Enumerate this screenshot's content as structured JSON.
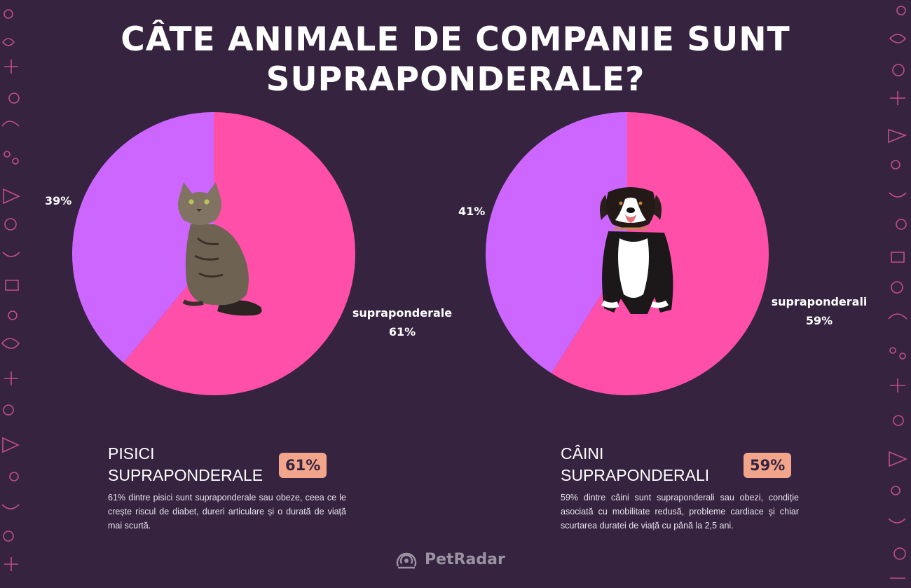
{
  "title_line1": "CÂTE ANIMALE DE COMPANIE SUNT",
  "title_line2": "SUPRAPONDERALE?",
  "colors": {
    "background": "#35233f",
    "overweight": "#ff4fa8",
    "other": "#cc66ff",
    "badge": "#f3a58b",
    "pattern": "#e05c9c"
  },
  "chart_data": [
    {
      "type": "pie",
      "values": [
        61,
        39
      ],
      "slice_colors": [
        "#ff4fa8",
        "#cc66ff"
      ],
      "labels": {
        "overweight_name": "supraponderale",
        "overweight_pct": "61%",
        "other_pct": "39%"
      },
      "center_image": "cat-image"
    },
    {
      "type": "pie",
      "values": [
        59,
        41
      ],
      "slice_colors": [
        "#ff4fa8",
        "#cc66ff"
      ],
      "labels": {
        "overweight_name": "supraponderali",
        "overweight_pct": "59%",
        "other_pct": "41%"
      },
      "center_image": "dog-image"
    }
  ],
  "cats_info": {
    "heading_line1": "PISICI",
    "heading_line2": "SUPRAPONDERALE",
    "badge": "61%",
    "text": "61% dintre pisici sunt supraponderale sau obeze, ceea ce le crește riscul de diabet, dureri articulare și o durată de viață mai scurtă."
  },
  "dogs_info": {
    "heading_line1": "CÂINI",
    "heading_line2": "SUPRAPONDERALI",
    "badge": "59%",
    "text": "59% dintre câini sunt supraponderali sau obezi, condiție asociată cu mobilitate redusă, probleme cardiace și chiar scurtarea duratei de viață cu până la 2,5 ani."
  },
  "logo": {
    "text": "PetRadar",
    "icon": "petradar-logo-icon"
  },
  "decor_icon": "paw-doodle-pattern"
}
